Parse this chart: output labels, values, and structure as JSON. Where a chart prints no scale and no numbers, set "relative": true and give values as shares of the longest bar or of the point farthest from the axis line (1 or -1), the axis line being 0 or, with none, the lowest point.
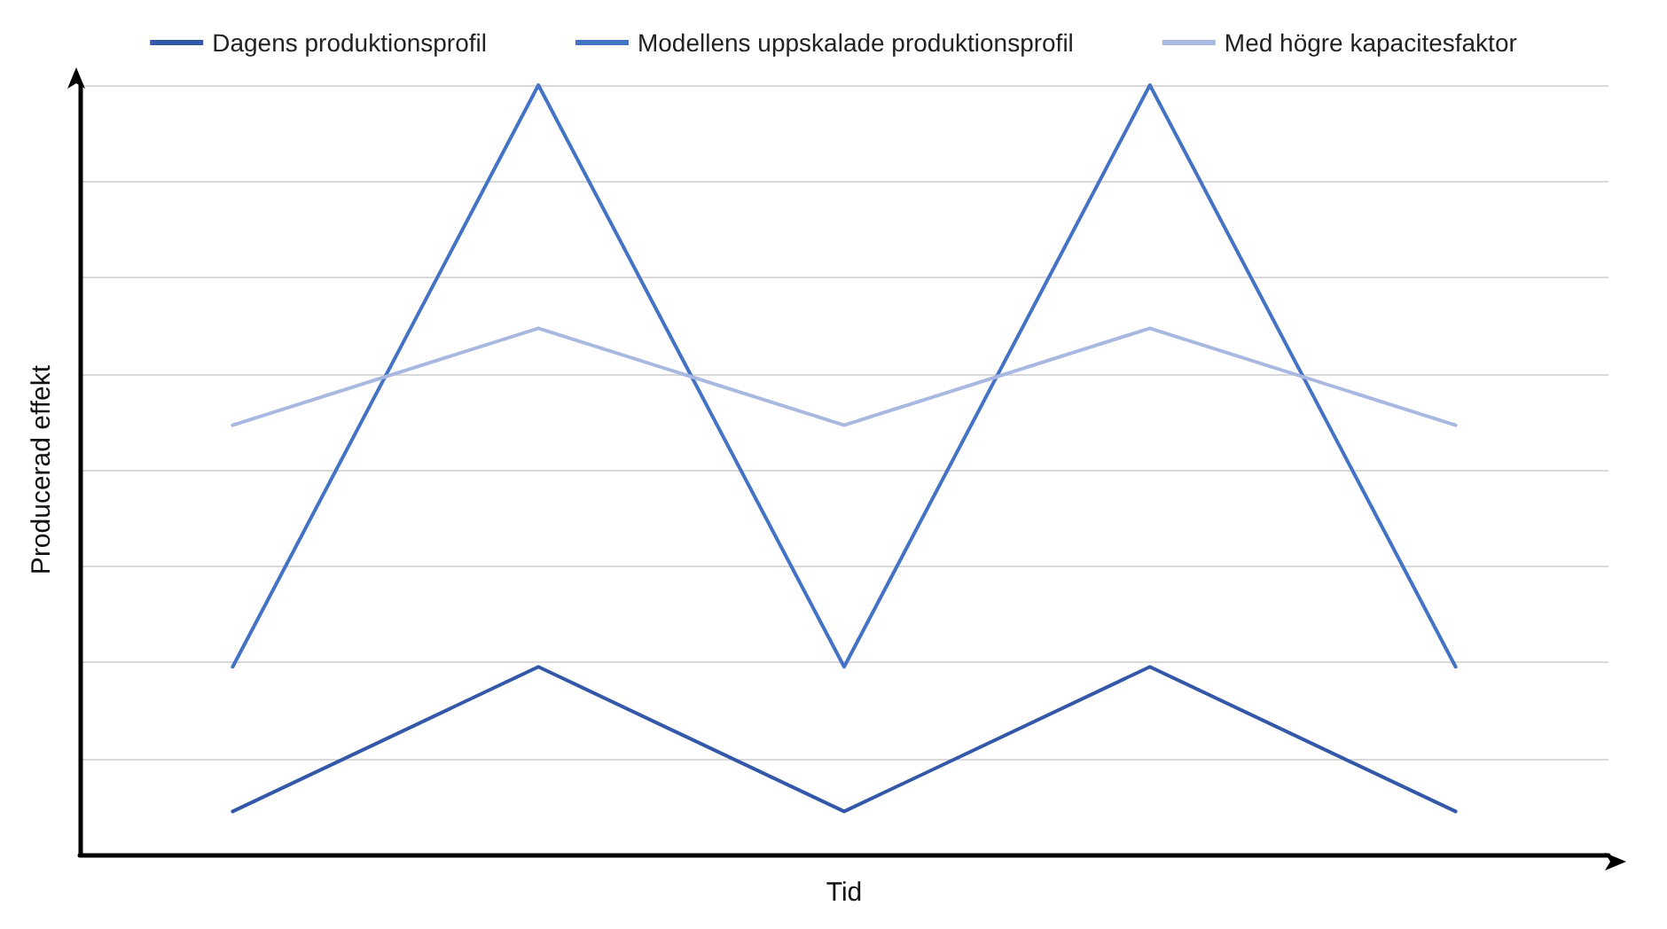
{
  "chart_data": {
    "type": "line",
    "xlabel": "Tid",
    "ylabel": "Producerad effekt",
    "relative": true,
    "grid": "y",
    "legend": "top",
    "marker": "none",
    "line_style": "solid",
    "categories": [
      null,
      null,
      null,
      null,
      null
    ],
    "series": [
      {
        "name": "Dagens produktionsprofil",
        "color": "#3358a8",
        "values": [
          0.056,
          0.244,
          0.056,
          0.244,
          0.056
        ]
      },
      {
        "name": "Modellens uppskalade produktionsprofil",
        "color": "#4472c4",
        "values": [
          0.244,
          1,
          0.244,
          1,
          0.244
        ]
      },
      {
        "name": "Med högre kapacitesfaktor",
        "color": "#a9b8e0",
        "values": [
          0.558,
          0.684,
          0.558,
          0.684,
          0.558
        ]
      }
    ]
  }
}
